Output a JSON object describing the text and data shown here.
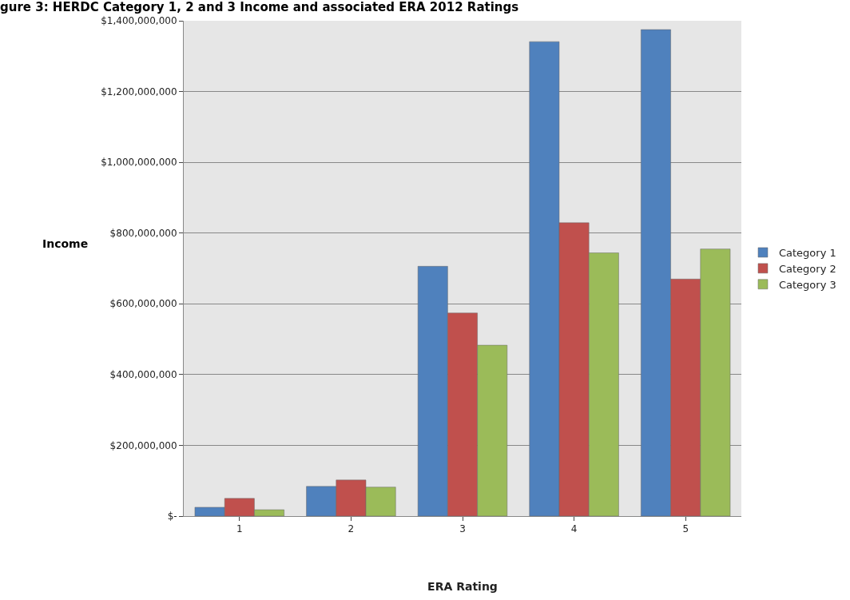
{
  "chart_data": {
    "type": "bar",
    "title": "gure 3: HERDC Category 1, 2 and 3 Income and associated ERA 2012 Ratings",
    "xlabel": "ERA Rating",
    "ylabel": "Income",
    "categories": [
      "1",
      "2",
      "3",
      "4",
      "5"
    ],
    "series": [
      {
        "name": "Category 1",
        "color": "#4f81bd",
        "values": [
          25000000,
          84000000,
          706000000,
          1341000000,
          1375000000
        ]
      },
      {
        "name": "Category 2",
        "color": "#c0504d",
        "values": [
          50000000,
          102000000,
          574000000,
          829000000,
          670000000
        ]
      },
      {
        "name": "Category 3",
        "color": "#9bbb59",
        "values": [
          18000000,
          82000000,
          483000000,
          744000000,
          755000000
        ]
      }
    ],
    "ylim": [
      0,
      1400000000
    ],
    "yticks": [
      {
        "value": 0,
        "label": "$-"
      },
      {
        "value": 200000000,
        "label": "$200,000,000"
      },
      {
        "value": 400000000,
        "label": "$400,000,000"
      },
      {
        "value": 600000000,
        "label": "$600,000,000"
      },
      {
        "value": 800000000,
        "label": "$800,000,000"
      },
      {
        "value": 1000000000,
        "label": "$1,000,000,000"
      },
      {
        "value": 1200000000,
        "label": "$1,200,000,000"
      },
      {
        "value": 1400000000,
        "label": "$1,400,000,000"
      }
    ],
    "grid": "y",
    "legend": "right"
  }
}
